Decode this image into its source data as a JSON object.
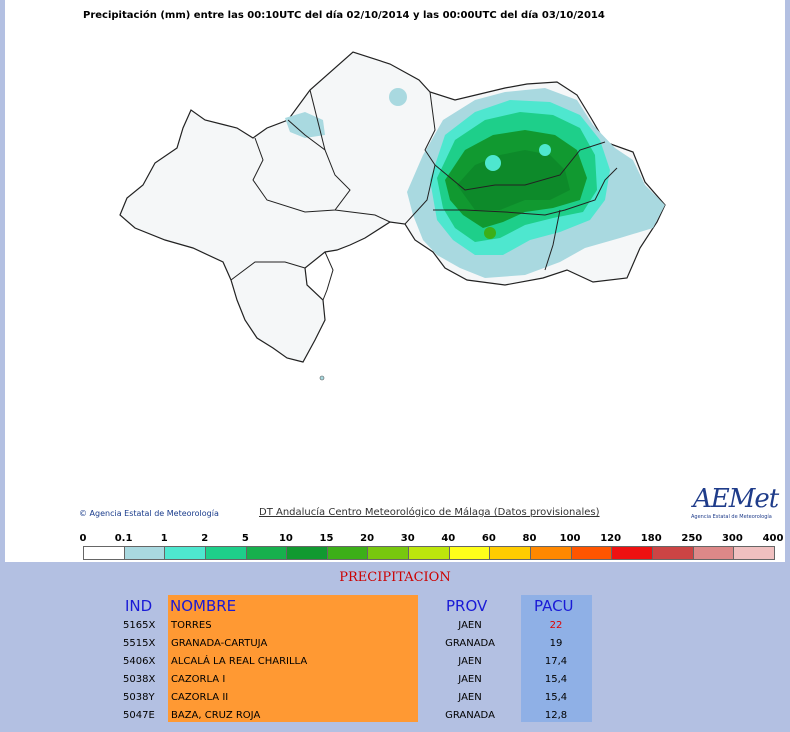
{
  "map": {
    "title": "Precipitación (mm) entre las 00:10UTC del día 02/10/2014 y las 00:00UTC del día 03/10/2014",
    "credit_left": "© Agencia Estatal de Meteorología",
    "credit_center": "DT Andalucía Centro Meteorológico de Málaga (Datos provisionales)",
    "logo_text": "AEMet",
    "logo_subtext": "Agencia Estatal de Meteorología"
  },
  "legend": {
    "ticks": [
      "0",
      "0.1",
      "1",
      "2",
      "5",
      "10",
      "15",
      "20",
      "30",
      "40",
      "60",
      "80",
      "100",
      "120",
      "180",
      "250",
      "300",
      "400"
    ],
    "colors": [
      "#ffffff",
      "#a9d9e0",
      "#4ee7cf",
      "#1ecf8a",
      "#17b04d",
      "#119930",
      "#3caf18",
      "#78c70e",
      "#bde60c",
      "#ffff1a",
      "#ffcc00",
      "#ff8800",
      "#ff5500",
      "#ee1111",
      "#cc4444",
      "#dd8888",
      "#f0c0c0"
    ]
  },
  "table": {
    "caption": "PRECIPITACION",
    "headers": {
      "ind": "IND",
      "nombre": "NOMBRE",
      "prov": "PROV",
      "pacu": "PACU"
    },
    "rows": [
      {
        "ind": "5165X",
        "nombre": "TORRES",
        "prov": "JAEN",
        "pacu": "22",
        "highlight": true
      },
      {
        "ind": "5515X",
        "nombre": "GRANADA-CARTUJA",
        "prov": "GRANADA",
        "pacu": "19",
        "highlight": false
      },
      {
        "ind": "5406X",
        "nombre": "ALCALÁ LA REAL CHARILLA",
        "prov": "JAEN",
        "pacu": "17,4",
        "highlight": false
      },
      {
        "ind": "5038X",
        "nombre": "CAZORLA I",
        "prov": "JAEN",
        "pacu": "15,4",
        "highlight": false
      },
      {
        "ind": "5038Y",
        "nombre": "CAZORLA II",
        "prov": "JAEN",
        "pacu": "15,4",
        "highlight": false
      },
      {
        "ind": "5047E",
        "nombre": "BAZA, CRUZ ROJA",
        "prov": "GRANADA",
        "pacu": "12,8",
        "highlight": false
      }
    ]
  }
}
